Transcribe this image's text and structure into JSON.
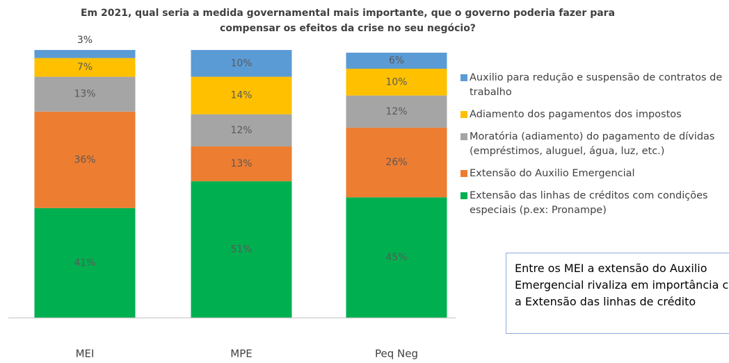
{
  "chart_data": {
    "type": "stacked_bar",
    "title": "Em 2021, qual seria a medida governamental mais importante, que o governo poderia fazer para compensar os efeitos da crise no seu negócio?",
    "categories": [
      "MEI",
      "MPE",
      "Peq Neg"
    ],
    "ylim": [
      0,
      100
    ],
    "series": [
      {
        "name": "Extensão das linhas de créditos com condições especiais (p.ex: Pronampe)",
        "color": "#00b050",
        "values": [
          41,
          51,
          45
        ],
        "value_labels": [
          "41%",
          "51%",
          "45%"
        ]
      },
      {
        "name": "Extensão do Auxilio Emergencial",
        "color": "#ed7d31",
        "values": [
          36,
          13,
          26
        ],
        "value_labels": [
          "36%",
          "13%",
          "26%"
        ]
      },
      {
        "name": "Moratória (adiamento) do pagamento de dívidas (empréstimos, aluguel, água, luz, etc.)",
        "color": "#a5a5a5",
        "values": [
          13,
          12,
          12
        ],
        "value_labels": [
          "13%",
          "12%",
          "12%"
        ]
      },
      {
        "name": "Adiamento dos pagamentos dos impostos",
        "color": "#ffc000",
        "values": [
          7,
          14,
          10
        ],
        "value_labels": [
          "7%",
          "14%",
          "10%"
        ]
      },
      {
        "name": "Auxilio para redução e suspensão de contratos de trabalho",
        "color": "#5b9bd5",
        "values": [
          3,
          10,
          6
        ],
        "value_labels": [
          "3%",
          "10%",
          "6%"
        ]
      }
    ],
    "annotation": "Entre os MEI a extensão do Auxilio Emergencial rivaliza em importância com a Extensão das linhas de crédito"
  }
}
